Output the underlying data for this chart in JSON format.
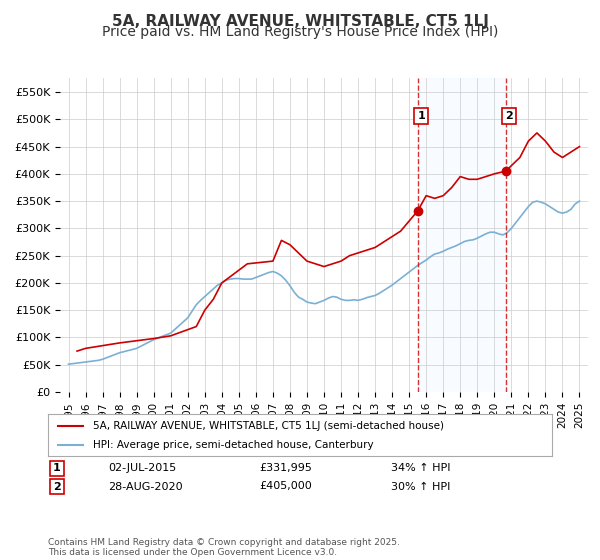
{
  "title": "5A, RAILWAY AVENUE, WHITSTABLE, CT5 1LJ",
  "subtitle": "Price paid vs. HM Land Registry's House Price Index (HPI)",
  "xlabel": "",
  "ylabel": "",
  "ylim": [
    0,
    575000
  ],
  "xlim": [
    1994.5,
    2025.5
  ],
  "yticks": [
    0,
    50000,
    100000,
    150000,
    200000,
    250000,
    300000,
    350000,
    400000,
    450000,
    500000,
    550000
  ],
  "ytick_labels": [
    "£0",
    "£50K",
    "£100K",
    "£150K",
    "£200K",
    "£250K",
    "£300K",
    "£350K",
    "£400K",
    "£450K",
    "£500K",
    "£550K"
  ],
  "xticks": [
    1995,
    1996,
    1997,
    1998,
    1999,
    2000,
    2001,
    2002,
    2003,
    2004,
    2005,
    2006,
    2007,
    2008,
    2009,
    2010,
    2011,
    2012,
    2013,
    2014,
    2015,
    2016,
    2017,
    2018,
    2019,
    2020,
    2021,
    2022,
    2023,
    2024,
    2025
  ],
  "sale1_x": 2015.5,
  "sale1_y": 331995,
  "sale1_label": "1",
  "sale1_date": "02-JUL-2015",
  "sale1_price": "£331,995",
  "sale1_hpi": "34% ↑ HPI",
  "sale2_x": 2020.67,
  "sale2_y": 405000,
  "sale2_label": "2",
  "sale2_date": "28-AUG-2020",
  "sale2_price": "£405,000",
  "sale2_hpi": "30% ↑ HPI",
  "line1_color": "#cc0000",
  "line2_color": "#7ab0d4",
  "shade_color": "#ddeeff",
  "grid_color": "#cccccc",
  "background_color": "#ffffff",
  "title_fontsize": 11,
  "subtitle_fontsize": 10,
  "legend1_label": "5A, RAILWAY AVENUE, WHITSTABLE, CT5 1LJ (semi-detached house)",
  "legend2_label": "HPI: Average price, semi-detached house, Canterbury",
  "footer": "Contains HM Land Registry data © Crown copyright and database right 2025.\nThis data is licensed under the Open Government Licence v3.0.",
  "hpi_series_x": [
    1995.0,
    1995.25,
    1995.5,
    1995.75,
    1996.0,
    1996.25,
    1996.5,
    1996.75,
    1997.0,
    1997.25,
    1997.5,
    1997.75,
    1998.0,
    1998.25,
    1998.5,
    1998.75,
    1999.0,
    1999.25,
    1999.5,
    1999.75,
    2000.0,
    2000.25,
    2000.5,
    2000.75,
    2001.0,
    2001.25,
    2001.5,
    2001.75,
    2002.0,
    2002.25,
    2002.5,
    2002.75,
    2003.0,
    2003.25,
    2003.5,
    2003.75,
    2004.0,
    2004.25,
    2004.5,
    2004.75,
    2005.0,
    2005.25,
    2005.5,
    2005.75,
    2006.0,
    2006.25,
    2006.5,
    2006.75,
    2007.0,
    2007.25,
    2007.5,
    2007.75,
    2008.0,
    2008.25,
    2008.5,
    2008.75,
    2009.0,
    2009.25,
    2009.5,
    2009.75,
    2010.0,
    2010.25,
    2010.5,
    2010.75,
    2011.0,
    2011.25,
    2011.5,
    2011.75,
    2012.0,
    2012.25,
    2012.5,
    2012.75,
    2013.0,
    2013.25,
    2013.5,
    2013.75,
    2014.0,
    2014.25,
    2014.5,
    2014.75,
    2015.0,
    2015.25,
    2015.5,
    2015.75,
    2016.0,
    2016.25,
    2016.5,
    2016.75,
    2017.0,
    2017.25,
    2017.5,
    2017.75,
    2018.0,
    2018.25,
    2018.5,
    2018.75,
    2019.0,
    2019.25,
    2019.5,
    2019.75,
    2020.0,
    2020.25,
    2020.5,
    2020.75,
    2021.0,
    2021.25,
    2021.5,
    2021.75,
    2022.0,
    2022.25,
    2022.5,
    2022.75,
    2023.0,
    2023.25,
    2023.5,
    2023.75,
    2024.0,
    2024.25,
    2024.5,
    2024.75,
    2025.0
  ],
  "hpi_series_y": [
    51000,
    52000,
    53000,
    54000,
    55000,
    56000,
    57000,
    58000,
    60000,
    63000,
    66000,
    69000,
    72000,
    74000,
    76000,
    78000,
    80000,
    84000,
    88000,
    92000,
    96000,
    99000,
    102000,
    105000,
    108000,
    115000,
    122000,
    129000,
    136000,
    148000,
    160000,
    168000,
    175000,
    182000,
    189000,
    196000,
    200000,
    205000,
    207000,
    208000,
    208000,
    207000,
    207000,
    207000,
    210000,
    213000,
    216000,
    219000,
    221000,
    218000,
    213000,
    205000,
    195000,
    183000,
    174000,
    170000,
    165000,
    163000,
    162000,
    165000,
    168000,
    172000,
    175000,
    174000,
    170000,
    168000,
    168000,
    169000,
    168000,
    170000,
    173000,
    175000,
    177000,
    181000,
    186000,
    191000,
    196000,
    202000,
    208000,
    214000,
    220000,
    226000,
    232000,
    237000,
    242000,
    248000,
    253000,
    255000,
    258000,
    262000,
    265000,
    268000,
    272000,
    276000,
    278000,
    279000,
    282000,
    286000,
    290000,
    293000,
    293000,
    290000,
    288000,
    292000,
    300000,
    310000,
    320000,
    330000,
    340000,
    348000,
    350000,
    348000,
    345000,
    340000,
    335000,
    330000,
    328000,
    330000,
    335000,
    345000,
    350000
  ],
  "price_series_x": [
    1995.5,
    1996.0,
    1997.0,
    1998.0,
    1999.25,
    2000.0,
    2001.0,
    2002.5,
    2003.0,
    2003.5,
    2004.0,
    2005.5,
    2007.0,
    2007.5,
    2008.0,
    2009.0,
    2010.0,
    2011.0,
    2011.5,
    2012.0,
    2013.0,
    2013.5,
    2014.0,
    2014.5,
    2015.5,
    2016.0,
    2016.5,
    2017.0,
    2017.5,
    2018.0,
    2018.5,
    2019.0,
    2019.5,
    2020.0,
    2020.67,
    2021.0,
    2021.5,
    2022.0,
    2022.5,
    2023.0,
    2023.5,
    2024.0,
    2024.5,
    2025.0
  ],
  "price_series_y": [
    75000,
    80000,
    85000,
    90000,
    95000,
    98000,
    103000,
    120000,
    150000,
    170000,
    200000,
    235000,
    240000,
    278000,
    270000,
    240000,
    230000,
    240000,
    250000,
    255000,
    265000,
    275000,
    285000,
    295000,
    331995,
    360000,
    355000,
    360000,
    375000,
    395000,
    390000,
    390000,
    395000,
    400000,
    405000,
    415000,
    430000,
    460000,
    475000,
    460000,
    440000,
    430000,
    440000,
    450000
  ]
}
